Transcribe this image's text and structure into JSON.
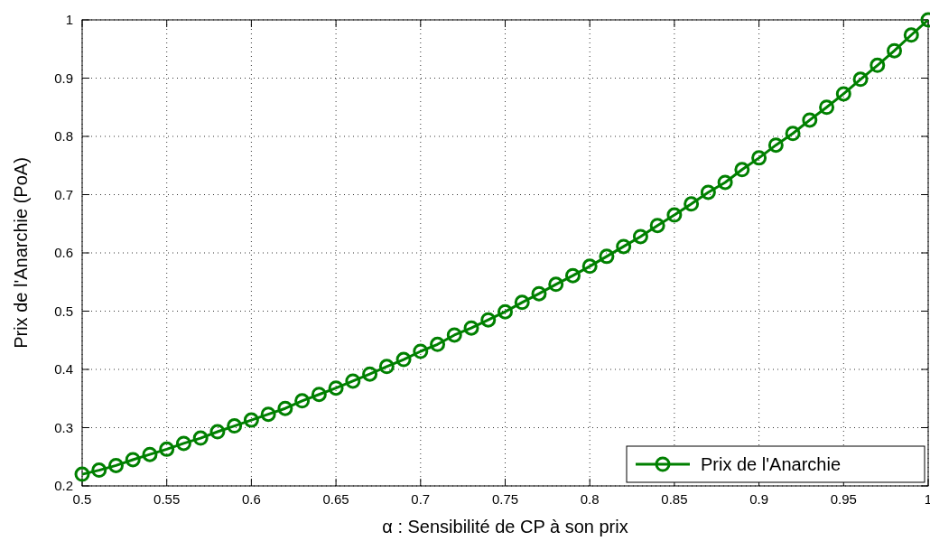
{
  "chart_data": {
    "type": "line",
    "xlabel": "α : Sensibilité de CP à son prix",
    "ylabel": "Prix de l'Anarchie (PoA)",
    "x": [
      0.5,
      0.51,
      0.52,
      0.53,
      0.54,
      0.55,
      0.56,
      0.57,
      0.58,
      0.59,
      0.6,
      0.61,
      0.62,
      0.63,
      0.64,
      0.65,
      0.66,
      0.67,
      0.68,
      0.69,
      0.7,
      0.71,
      0.72,
      0.73,
      0.74,
      0.75,
      0.76,
      0.77,
      0.78,
      0.79,
      0.8,
      0.81,
      0.82,
      0.83,
      0.84,
      0.85,
      0.86,
      0.87,
      0.88,
      0.89,
      0.9,
      0.91,
      0.92,
      0.93,
      0.94,
      0.95,
      0.96,
      0.97,
      0.98,
      0.99,
      1.0
    ],
    "series": [
      {
        "name": "Prix de l'Anarchie",
        "color": "#008000",
        "values": [
          0.22,
          0.227,
          0.235,
          0.245,
          0.254,
          0.263,
          0.273,
          0.282,
          0.293,
          0.303,
          0.313,
          0.323,
          0.333,
          0.346,
          0.357,
          0.368,
          0.38,
          0.392,
          0.405,
          0.417,
          0.431,
          0.443,
          0.459,
          0.471,
          0.485,
          0.499,
          0.515,
          0.53,
          0.546,
          0.561,
          0.577,
          0.594,
          0.611,
          0.628,
          0.647,
          0.665,
          0.684,
          0.704,
          0.721,
          0.743,
          0.763,
          0.785,
          0.805,
          0.828,
          0.85,
          0.873,
          0.898,
          0.922,
          0.947,
          0.974,
          1.0
        ]
      }
    ],
    "xlim": [
      0.5,
      1
    ],
    "xticks": [
      0.5,
      0.55,
      0.6,
      0.65,
      0.7,
      0.75,
      0.8,
      0.85,
      0.9,
      0.95,
      1
    ],
    "ylim": [
      0.2,
      1
    ],
    "yticks": [
      0.2,
      0.3,
      0.4,
      0.5,
      0.6,
      0.7,
      0.8,
      0.9,
      1
    ],
    "grid": true,
    "legend": "bottom right",
    "marker": "circle",
    "line_style": "solid"
  }
}
